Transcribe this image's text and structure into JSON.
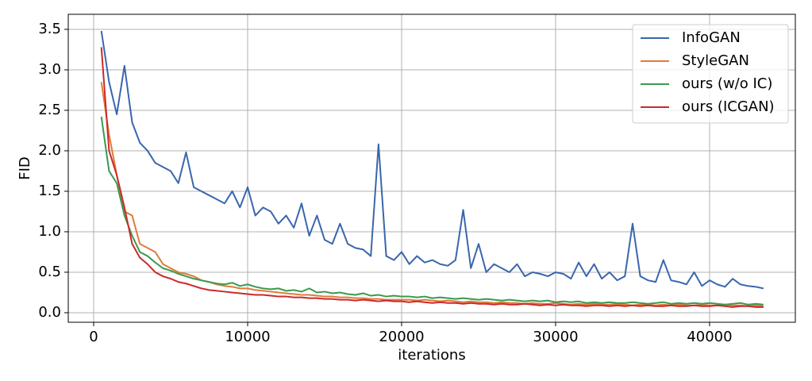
{
  "chart_data": {
    "type": "line",
    "xlabel": "iterations",
    "ylabel": "FID",
    "x": [
      500,
      1000,
      1500,
      2000,
      2500,
      3000,
      3500,
      4000,
      4500,
      5000,
      5500,
      6000,
      6500,
      7000,
      7500,
      8000,
      8500,
      9000,
      9500,
      10000,
      10500,
      11000,
      11500,
      12000,
      12500,
      13000,
      13500,
      14000,
      14500,
      15000,
      15500,
      16000,
      16500,
      17000,
      17500,
      18000,
      18500,
      19000,
      19500,
      20000,
      20500,
      21000,
      21500,
      22000,
      22500,
      23000,
      23500,
      24000,
      24500,
      25000,
      25500,
      26000,
      26500,
      27000,
      27500,
      28000,
      28500,
      29000,
      29500,
      30000,
      30500,
      31000,
      31500,
      32000,
      32500,
      33000,
      33500,
      34000,
      34500,
      35000,
      35500,
      36000,
      36500,
      37000,
      37500,
      38000,
      38500,
      39000,
      39500,
      40000,
      40500,
      41000,
      41500,
      42000,
      42500,
      43000,
      43500
    ],
    "series": [
      {
        "name": "InfoGAN",
        "color": "#3a66ad",
        "values": [
          3.48,
          2.85,
          2.45,
          3.05,
          2.35,
          2.1,
          2.0,
          1.85,
          1.8,
          1.75,
          1.6,
          1.98,
          1.55,
          1.5,
          1.45,
          1.4,
          1.35,
          1.5,
          1.3,
          1.55,
          1.2,
          1.3,
          1.25,
          1.1,
          1.2,
          1.05,
          1.35,
          0.95,
          1.2,
          0.9,
          0.85,
          1.1,
          0.85,
          0.8,
          0.78,
          0.7,
          2.08,
          0.7,
          0.65,
          0.75,
          0.6,
          0.7,
          0.62,
          0.65,
          0.6,
          0.58,
          0.65,
          1.27,
          0.55,
          0.85,
          0.5,
          0.6,
          0.55,
          0.5,
          0.6,
          0.45,
          0.5,
          0.48,
          0.45,
          0.5,
          0.48,
          0.42,
          0.62,
          0.45,
          0.6,
          0.42,
          0.5,
          0.4,
          0.45,
          1.1,
          0.45,
          0.4,
          0.38,
          0.65,
          0.4,
          0.38,
          0.35,
          0.5,
          0.33,
          0.4,
          0.35,
          0.32,
          0.42,
          0.35,
          0.33,
          0.32,
          0.3
        ]
      },
      {
        "name": "StyleGAN",
        "color": "#e07b39",
        "values": [
          2.85,
          2.2,
          1.7,
          1.25,
          1.2,
          0.85,
          0.8,
          0.75,
          0.6,
          0.55,
          0.5,
          0.48,
          0.45,
          0.4,
          0.38,
          0.35,
          0.33,
          0.32,
          0.3,
          0.3,
          0.28,
          0.27,
          0.26,
          0.25,
          0.24,
          0.23,
          0.22,
          0.22,
          0.21,
          0.2,
          0.2,
          0.19,
          0.19,
          0.18,
          0.18,
          0.17,
          0.17,
          0.16,
          0.16,
          0.16,
          0.16,
          0.15,
          0.16,
          0.15,
          0.14,
          0.15,
          0.14,
          0.13,
          0.14,
          0.13,
          0.13,
          0.12,
          0.13,
          0.12,
          0.12,
          0.11,
          0.12,
          0.11,
          0.11,
          0.12,
          0.11,
          0.1,
          0.11,
          0.1,
          0.11,
          0.1,
          0.1,
          0.11,
          0.1,
          0.09,
          0.1,
          0.1,
          0.09,
          0.1,
          0.09,
          0.1,
          0.09,
          0.09,
          0.1,
          0.09,
          0.09,
          0.1,
          0.09,
          0.09,
          0.08,
          0.09,
          0.08
        ]
      },
      {
        "name": "ours (w/o IC)",
        "color": "#3a9a4f",
        "values": [
          2.42,
          1.75,
          1.6,
          1.2,
          0.95,
          0.75,
          0.7,
          0.62,
          0.55,
          0.52,
          0.48,
          0.45,
          0.42,
          0.4,
          0.38,
          0.36,
          0.35,
          0.37,
          0.33,
          0.35,
          0.32,
          0.3,
          0.29,
          0.3,
          0.27,
          0.28,
          0.26,
          0.3,
          0.25,
          0.26,
          0.24,
          0.25,
          0.23,
          0.22,
          0.24,
          0.21,
          0.22,
          0.2,
          0.21,
          0.2,
          0.2,
          0.19,
          0.2,
          0.18,
          0.19,
          0.18,
          0.17,
          0.18,
          0.17,
          0.16,
          0.17,
          0.16,
          0.15,
          0.16,
          0.15,
          0.14,
          0.15,
          0.14,
          0.15,
          0.13,
          0.14,
          0.13,
          0.14,
          0.12,
          0.13,
          0.12,
          0.13,
          0.12,
          0.12,
          0.13,
          0.12,
          0.11,
          0.12,
          0.13,
          0.11,
          0.12,
          0.11,
          0.12,
          0.11,
          0.12,
          0.11,
          0.1,
          0.11,
          0.12,
          0.1,
          0.11,
          0.1
        ]
      },
      {
        "name": "ours (ICGAN)",
        "color": "#cc2a2a",
        "values": [
          3.28,
          2.0,
          1.7,
          1.3,
          0.85,
          0.68,
          0.6,
          0.5,
          0.45,
          0.42,
          0.38,
          0.36,
          0.33,
          0.3,
          0.28,
          0.27,
          0.26,
          0.25,
          0.24,
          0.23,
          0.22,
          0.22,
          0.21,
          0.2,
          0.2,
          0.19,
          0.19,
          0.18,
          0.18,
          0.17,
          0.17,
          0.16,
          0.16,
          0.15,
          0.16,
          0.15,
          0.14,
          0.15,
          0.14,
          0.14,
          0.13,
          0.14,
          0.13,
          0.12,
          0.13,
          0.12,
          0.12,
          0.11,
          0.12,
          0.11,
          0.11,
          0.1,
          0.11,
          0.1,
          0.1,
          0.11,
          0.1,
          0.09,
          0.1,
          0.09,
          0.1,
          0.09,
          0.09,
          0.08,
          0.09,
          0.09,
          0.08,
          0.09,
          0.08,
          0.09,
          0.08,
          0.09,
          0.08,
          0.08,
          0.09,
          0.08,
          0.08,
          0.09,
          0.08,
          0.08,
          0.09,
          0.08,
          0.07,
          0.08,
          0.08,
          0.07,
          0.07
        ]
      }
    ],
    "xlim": [
      -1650,
      45570
    ],
    "ylim": [
      -0.118,
      3.686
    ],
    "xticks": [
      0,
      10000,
      20000,
      30000,
      40000
    ],
    "yticks": [
      {
        "value": 0,
        "label": "0.0"
      },
      0.5,
      {
        "value": 1,
        "label": "1.0"
      },
      1.5,
      {
        "value": 2,
        "label": "2.0"
      },
      2.5,
      {
        "value": 3,
        "label": "3.0"
      },
      3.5
    ],
    "grid": true,
    "legend": "upper right"
  }
}
